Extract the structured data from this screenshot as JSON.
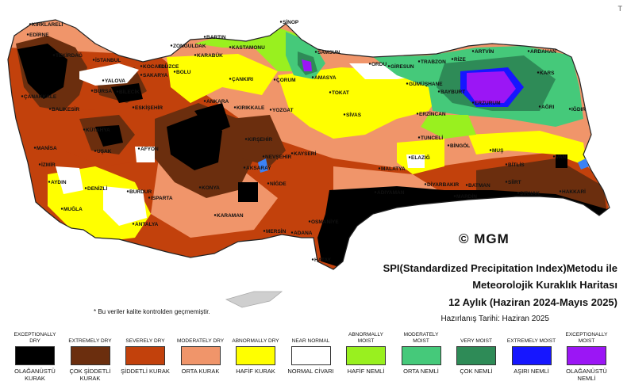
{
  "title": {
    "line1": "SPI(Standardized Precipitation Index)Metodu ile",
    "line2": "Meteorolojik Kuraklık Haritası",
    "line3": "12 Aylık (Haziran 2024-Mayıs 2025)",
    "date": "Hazırlanış Tarihi: Haziran 2025"
  },
  "note": "* Bu veriler kalite kontrolden geçmemiştir.",
  "logo": "© MGM",
  "corner_mark": "T",
  "colors": {
    "exceptionally_dry": "#000000",
    "extremely_dry": "#6b2e0e",
    "severely_dry": "#c2410c",
    "moderately_dry": "#f0956a",
    "abnormally_dry": "#ffff00",
    "near_normal": "#ffffff",
    "abnormally_moist": "#99f01f",
    "moderately_moist": "#45c97a",
    "very_moist": "#2e8b57",
    "extremely_moist": "#1616ff",
    "exceptionally_moist": "#9b16f5"
  },
  "legend": [
    {
      "en": "EXCEPTIONALLY DRY",
      "tr": "OLAĞANÜSTÜ KURAK",
      "color": "#000000"
    },
    {
      "en": "EXTREMELY DRY",
      "tr": "ÇOK ŞİDDETLİ KURAK",
      "color": "#6b2e0e"
    },
    {
      "en": "SEVERELY DRY",
      "tr": "ŞİDDETLİ KURAK",
      "color": "#c2410c"
    },
    {
      "en": "MODERATELY DRY",
      "tr": "ORTA KURAK",
      "color": "#f0956a"
    },
    {
      "en": "ABNORMALLY DRY",
      "tr": "HAFİF KURAK",
      "color": "#ffff00"
    },
    {
      "en": "NEAR NORMAL",
      "tr": "NORMAL CİVARI",
      "color": "#ffffff"
    },
    {
      "en": "ABNORMALLY MOIST",
      "tr": "HAFİF NEMLİ",
      "color": "#99f01f"
    },
    {
      "en": "MODERATELY MOIST",
      "tr": "ORTA NEMLİ",
      "color": "#45c97a"
    },
    {
      "en": "VERY MOIST",
      "tr": "ÇOK NEMLİ",
      "color": "#2e8b57"
    },
    {
      "en": "EXTREMELY MOIST",
      "tr": "AŞIRI NEMLİ",
      "color": "#1616ff"
    },
    {
      "en": "EXCEPTIONALLY MOIST",
      "tr": "OLAĞANÜSTÜ NEMLİ",
      "color": "#9b16f5"
    }
  ],
  "cities": {
    "kirklareli": "KIRKLARELİ",
    "edirne": "EDİRNE",
    "istanbul": "İSTANBUL",
    "tekirdag": "TEKİRDAĞ",
    "canakkale": "ÇANAKKALE",
    "balikesir": "BALIKESİR",
    "bursa": "BURSA",
    "yalova": "YALOVA",
    "kocaeli": "KOCAELİ",
    "sakarya": "SAKARYA",
    "bilecik": "BİLECİK",
    "duzce": "DÜZCE",
    "bolu": "BOLU",
    "zonguldak": "ZONGULDAK",
    "bartin": "BARTIN",
    "karabuk": "KARABÜK",
    "kastamonu": "KASTAMONU",
    "sinop": "SİNOP",
    "samsun": "SAMSUN",
    "amasya": "AMASYA",
    "corum": "ÇORUM",
    "cankiri": "ÇANKIRI",
    "ordu": "ORDU",
    "giresun": "GİRESUN",
    "trabzon": "TRABZON",
    "rize": "RİZE",
    "artvin": "ARTVİN",
    "ardahan": "ARDAHAN",
    "gumushane": "GÜMÜŞHANE",
    "bayburt": "BAYBURT",
    "erzurum": "ERZURUM",
    "kars": "KARS",
    "agri": "AĞRI",
    "igdir": "IĞDIR",
    "erzincan": "ERZİNCAN",
    "tokat": "TOKAT",
    "sivas": "SİVAS",
    "yozgat": "YOZGAT",
    "ankara": "ANKARA",
    "kirikkale": "KIRIKKALE",
    "eskisehir": "ESKİŞEHİR",
    "kutahya": "KÜTAHYA",
    "manisa": "MANİSA",
    "izmir": "İZMİR",
    "usak": "UŞAK",
    "afyon": "AFYON",
    "aydin": "AYDIN",
    "denizli": "DENİZLİ",
    "mugla": "MUĞLA",
    "burdur": "BURDUR",
    "isparta": "ISPARTA",
    "antalya": "ANTALYA",
    "konya": "KONYA",
    "karaman": "KARAMAN",
    "aksaray": "AKSARAY",
    "kirsehir": "KIRŞEHİR",
    "nevsehir": "NEVŞEHİR",
    "kayseri": "KAYSERİ",
    "nigde": "NİĞDE",
    "mersin": "MERSİN",
    "adana": "ADANA",
    "osmaniye": "OSMANİYE",
    "hatay": "HATAY",
    "malatya": "MALATYA",
    "adiyaman": "ADIYAMAN",
    "elazig": "ELAZIĞ",
    "tunceli": "TUNCELİ",
    "bingol": "BİNGÖL",
    "mus": "MUŞ",
    "bitlis": "BİTLİS",
    "van": "VAN",
    "diyarbakir": "DİYARBAKIR",
    "siirt": "SİİRT",
    "batman": "BATMAN",
    "hakkari": "HAKKARİ",
    "sirnak": "ŞIRNAK",
    "mardin": "MARDİN"
  }
}
